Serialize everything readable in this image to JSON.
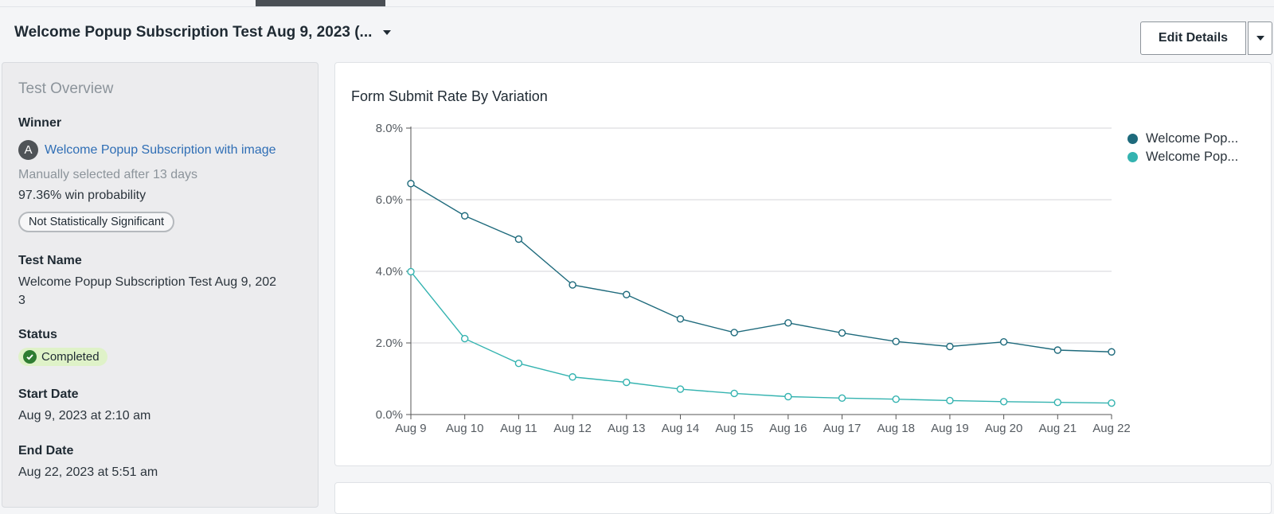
{
  "header": {
    "title": "Welcome Popup Subscription Test Aug 9, 2023 (...",
    "edit_label": "Edit Details"
  },
  "sidebar": {
    "title": "Test Overview",
    "winner_label": "Winner",
    "winner_avatar": "A",
    "winner_name": "Welcome Popup Subscription with image",
    "winner_note": "Manually selected after 13 days",
    "win_probability": "97.36% win probability",
    "significance": "Not Statistically Significant",
    "test_name_label": "Test Name",
    "test_name_line1": "Welcome Popup Subscription Test Aug 9, 202",
    "test_name_line2": "3",
    "status_label": "Status",
    "status_value": "Completed",
    "start_label": "Start Date",
    "start_value": "Aug 9, 2023 at 2:10 am",
    "end_label": "End Date",
    "end_value": "Aug 22, 2023 at 5:51 am"
  },
  "colors": {
    "series_a": "#1e6a7c",
    "series_b": "#34b3b0",
    "link": "#2f6eb5"
  },
  "chart_data": {
    "type": "line",
    "title": "Form Submit Rate By Variation",
    "categories": [
      "Aug 9",
      "Aug 10",
      "Aug 11",
      "Aug 12",
      "Aug 13",
      "Aug 14",
      "Aug 15",
      "Aug 16",
      "Aug 17",
      "Aug 18",
      "Aug 19",
      "Aug 20",
      "Aug 21",
      "Aug 22"
    ],
    "y_ticks": [
      "0.0%",
      "2.0%",
      "4.0%",
      "6.0%",
      "8.0%"
    ],
    "ylim": [
      0,
      8
    ],
    "yunit": "%",
    "legend_position": "top-right",
    "series": [
      {
        "name": "Welcome Pop...",
        "color": "#1e6a7c",
        "values": [
          6.45,
          5.55,
          4.9,
          3.62,
          3.35,
          2.67,
          2.29,
          2.56,
          2.28,
          2.04,
          1.9,
          2.03,
          1.8,
          1.75
        ]
      },
      {
        "name": "Welcome Pop...",
        "color": "#34b3b0",
        "values": [
          3.99,
          2.12,
          1.43,
          1.05,
          0.9,
          0.71,
          0.59,
          0.5,
          0.46,
          0.43,
          0.39,
          0.36,
          0.34,
          0.32
        ]
      }
    ]
  }
}
